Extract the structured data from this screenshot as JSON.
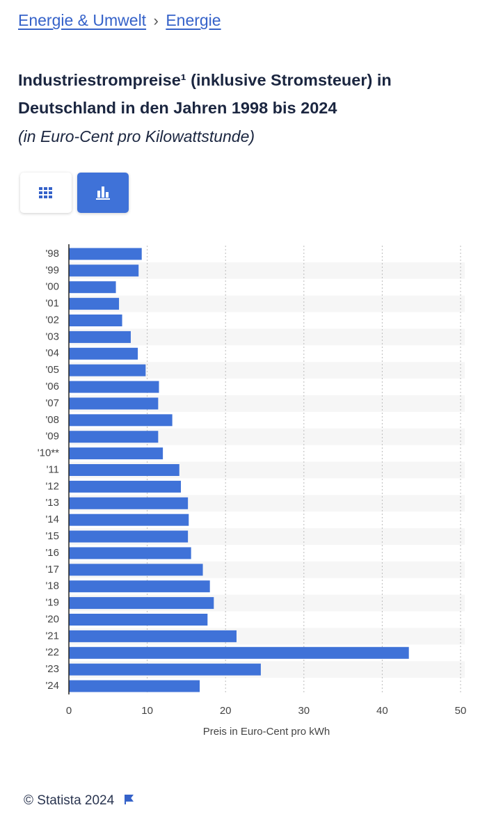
{
  "breadcrumb": [
    "Energie & Umwelt",
    "Energie"
  ],
  "breadcrumb_separator": "›",
  "footer": "© Statista 2024",
  "chart_data": {
    "type": "barh",
    "title": "Industriestrompreise¹ (inklusive Stromsteuer) in Deutschland in den Jahren 1998 bis 2024",
    "subtitle": "(in Euro-Cent pro Kilowattstunde)",
    "x_label": "Preis in Euro-Cent pro kWh",
    "categories": [
      "'98",
      "'99",
      "'00",
      "'01",
      "'02",
      "'03",
      "'04",
      "'05",
      "'06",
      "'07",
      "'08",
      "'09",
      "'10**",
      "'11",
      "'12",
      "'13",
      "'14",
      "'15",
      "'16",
      "'17",
      "'18",
      "'19",
      "'20",
      "'21",
      "'22",
      "'23",
      "'24"
    ],
    "values": [
      9.3,
      8.9,
      6.0,
      6.4,
      6.8,
      7.9,
      8.8,
      9.8,
      11.5,
      11.4,
      13.2,
      11.4,
      12.0,
      14.1,
      14.3,
      15.2,
      15.3,
      15.2,
      15.6,
      17.1,
      18.0,
      18.5,
      17.7,
      21.4,
      43.4,
      24.5,
      16.7
    ],
    "color": "#3f72d8",
    "xlim": [
      0,
      50
    ],
    "xticks": [
      0,
      10,
      20,
      30,
      40,
      50
    ],
    "grid": true
  }
}
